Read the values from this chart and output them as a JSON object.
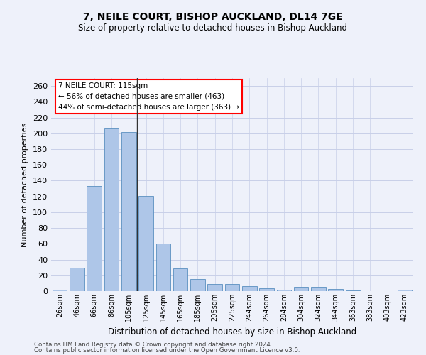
{
  "title1": "7, NEILE COURT, BISHOP AUCKLAND, DL14 7GE",
  "title2": "Size of property relative to detached houses in Bishop Auckland",
  "xlabel": "Distribution of detached houses by size in Bishop Auckland",
  "ylabel": "Number of detached properties",
  "categories": [
    "26sqm",
    "46sqm",
    "66sqm",
    "86sqm",
    "105sqm",
    "125sqm",
    "145sqm",
    "165sqm",
    "185sqm",
    "205sqm",
    "225sqm",
    "244sqm",
    "264sqm",
    "284sqm",
    "304sqm",
    "324sqm",
    "344sqm",
    "363sqm",
    "383sqm",
    "403sqm",
    "423sqm"
  ],
  "values": [
    2,
    30,
    133,
    207,
    202,
    121,
    60,
    29,
    15,
    9,
    9,
    6,
    4,
    2,
    5,
    5,
    3,
    1,
    0,
    0,
    2
  ],
  "bar_color": "#aec6e8",
  "bar_edge_color": "#5a8fc0",
  "highlight_bar_index": 4,
  "highlight_line_color": "#333333",
  "annotation_text": "7 NEILE COURT: 115sqm\n← 56% of detached houses are smaller (463)\n44% of semi-detached houses are larger (363) →",
  "ylim": [
    0,
    270
  ],
  "yticks": [
    0,
    20,
    40,
    60,
    80,
    100,
    120,
    140,
    160,
    180,
    200,
    220,
    240,
    260
  ],
  "footer1": "Contains HM Land Registry data © Crown copyright and database right 2024.",
  "footer2": "Contains public sector information licensed under the Open Government Licence v3.0.",
  "bg_color": "#eef1fa",
  "grid_color": "#c8cfe8"
}
